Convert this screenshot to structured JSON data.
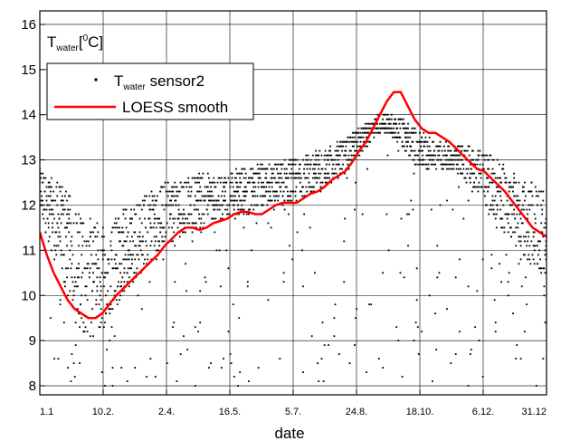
{
  "chart_data": {
    "type": "scatter",
    "xlabel": "date",
    "ylabel": "T",
    "ylabel_sub": "water",
    "ylabel_unit_pre": "[",
    "ylabel_unit_sup": "0",
    "ylabel_unit_post": "C]",
    "x_ticks": [
      "1.1",
      "10.2.",
      "2.4.",
      "16.5.",
      "5.7.",
      "24.8.",
      "18.10.",
      "6.12.",
      "31.12"
    ],
    "ylim": [
      7.8,
      16.3
    ],
    "y_ticks": [
      8,
      9,
      10,
      11,
      12,
      13,
      14,
      15,
      16
    ],
    "grid": true,
    "legend_position": "top-left",
    "colors": {
      "scatter": "#000000",
      "smooth": "#ff0000"
    },
    "series": [
      {
        "name_main": "T",
        "name_sub": "water",
        "name_post": " sensor2",
        "kind": "scatter",
        "band": {
          "x": [
            0,
            5,
            10,
            15,
            20,
            25,
            30,
            35,
            40,
            45,
            50,
            55,
            60,
            65,
            70,
            75,
            80,
            85,
            90,
            95,
            100,
            105,
            110,
            115,
            120,
            125,
            130,
            135,
            140,
            145,
            150,
            155,
            160,
            165,
            170,
            175,
            180,
            185,
            190,
            195,
            200,
            205,
            210,
            215,
            220,
            225,
            230,
            235,
            240,
            245,
            250,
            255,
            260,
            265,
            270,
            275,
            280,
            285,
            290,
            295,
            300,
            305,
            310,
            315,
            320,
            325,
            330,
            335,
            340,
            345,
            350,
            355,
            360,
            365
          ],
          "low": [
            11.8,
            11.3,
            10.9,
            10.4,
            9.9,
            9.5,
            9.2,
            9.0,
            9.0,
            9.2,
            9.5,
            9.8,
            10.0,
            10.2,
            10.4,
            10.6,
            10.8,
            11.0,
            11.1,
            11.2,
            11.3,
            11.4,
            11.4,
            11.5,
            11.5,
            11.6,
            11.6,
            11.7,
            11.7,
            11.8,
            11.8,
            11.9,
            11.9,
            12.0,
            12.0,
            12.0,
            12.1,
            12.1,
            12.2,
            12.2,
            12.3,
            12.4,
            12.5,
            12.6,
            12.7,
            12.9,
            13.1,
            13.3,
            13.5,
            13.6,
            13.6,
            13.5,
            13.3,
            13.1,
            12.9,
            12.8,
            12.8,
            12.8,
            12.8,
            12.8,
            12.7,
            12.6,
            12.5,
            12.3,
            12.0,
            11.8,
            11.6,
            11.4,
            11.2,
            11.0,
            10.8,
            10.6,
            10.5,
            10.4
          ],
          "high": [
            12.8,
            12.7,
            12.6,
            12.5,
            12.3,
            12.0,
            11.8,
            11.7,
            11.6,
            11.6,
            11.7,
            11.8,
            11.9,
            12.0,
            12.1,
            12.2,
            12.3,
            12.4,
            12.5,
            12.5,
            12.6,
            12.6,
            12.6,
            12.7,
            12.7,
            12.7,
            12.7,
            12.8,
            12.8,
            12.8,
            12.8,
            12.9,
            12.9,
            12.9,
            12.9,
            13.0,
            13.0,
            13.0,
            13.1,
            13.1,
            13.2,
            13.2,
            13.3,
            13.4,
            13.5,
            13.6,
            13.7,
            13.8,
            13.9,
            14.0,
            14.0,
            14.0,
            13.9,
            13.8,
            13.7,
            13.6,
            13.5,
            13.4,
            13.4,
            13.4,
            13.3,
            13.3,
            13.3,
            13.2,
            13.2,
            13.1,
            13.0,
            12.9,
            12.8,
            12.7,
            12.6,
            12.5,
            12.4,
            12.3
          ]
        }
      },
      {
        "name": "LOESS smooth",
        "kind": "line",
        "x": [
          0,
          5,
          10,
          15,
          20,
          25,
          30,
          35,
          40,
          45,
          50,
          55,
          60,
          65,
          70,
          75,
          80,
          85,
          90,
          95,
          100,
          105,
          110,
          115,
          120,
          125,
          130,
          135,
          140,
          145,
          150,
          155,
          160,
          165,
          170,
          175,
          180,
          185,
          190,
          195,
          200,
          205,
          210,
          215,
          220,
          225,
          230,
          235,
          240,
          245,
          250,
          255,
          260,
          265,
          270,
          275,
          280,
          285,
          290,
          295,
          300,
          305,
          310,
          315,
          320,
          325,
          330,
          335,
          340,
          345,
          350,
          355,
          360,
          365
        ],
        "y": [
          11.4,
          10.9,
          10.5,
          10.2,
          9.9,
          9.7,
          9.6,
          9.5,
          9.5,
          9.6,
          9.8,
          10.0,
          10.15,
          10.3,
          10.45,
          10.6,
          10.75,
          10.9,
          11.1,
          11.25,
          11.4,
          11.5,
          11.5,
          11.45,
          11.5,
          11.6,
          11.65,
          11.7,
          11.8,
          11.85,
          11.85,
          11.8,
          11.8,
          11.9,
          12.0,
          12.05,
          12.05,
          12.05,
          12.15,
          12.25,
          12.3,
          12.4,
          12.55,
          12.65,
          12.75,
          12.95,
          13.2,
          13.4,
          13.7,
          14.0,
          14.3,
          14.5,
          14.5,
          14.2,
          13.9,
          13.7,
          13.6,
          13.6,
          13.5,
          13.4,
          13.25,
          13.1,
          12.95,
          12.8,
          12.75,
          12.6,
          12.45,
          12.3,
          12.1,
          11.9,
          11.7,
          11.5,
          11.4,
          11.3
        ]
      }
    ]
  }
}
